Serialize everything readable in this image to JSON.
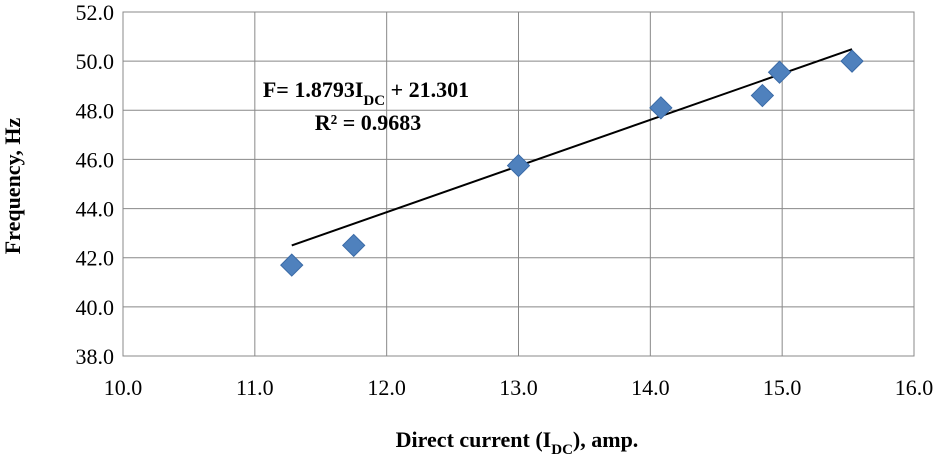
{
  "chart_data": {
    "type": "scatter",
    "title": "",
    "xlabel": {
      "main": "Direct current (I",
      "sub": "DC",
      "tail": "), amp."
    },
    "ylabel": "Frequency, Hz",
    "xlim": [
      10.0,
      16.0
    ],
    "ylim": [
      38.0,
      52.0
    ],
    "x_ticks": [
      "10.0",
      "11.0",
      "12.0",
      "13.0",
      "14.0",
      "15.0",
      "16.0"
    ],
    "y_ticks": [
      "38.0",
      "40.0",
      "42.0",
      "44.0",
      "46.0",
      "48.0",
      "50.0",
      "52.0"
    ],
    "grid": true,
    "legend": "none",
    "marker_color": "#4f81bd",
    "series": [
      {
        "x": [
          11.28,
          11.75,
          13.0,
          14.08,
          14.85,
          14.98,
          15.53
        ],
        "y": [
          41.7,
          42.5,
          45.75,
          48.1,
          48.6,
          49.55,
          50.0
        ]
      }
    ],
    "trendline": {
      "slope": 1.8793,
      "intercept": 21.301,
      "x_range": [
        11.28,
        15.53
      ],
      "color": "#000000"
    },
    "equation": {
      "main": "F= 1.8793I",
      "sub": "DC",
      "tail": " + 21.301"
    },
    "r_squared": "R² = 0.9683"
  }
}
